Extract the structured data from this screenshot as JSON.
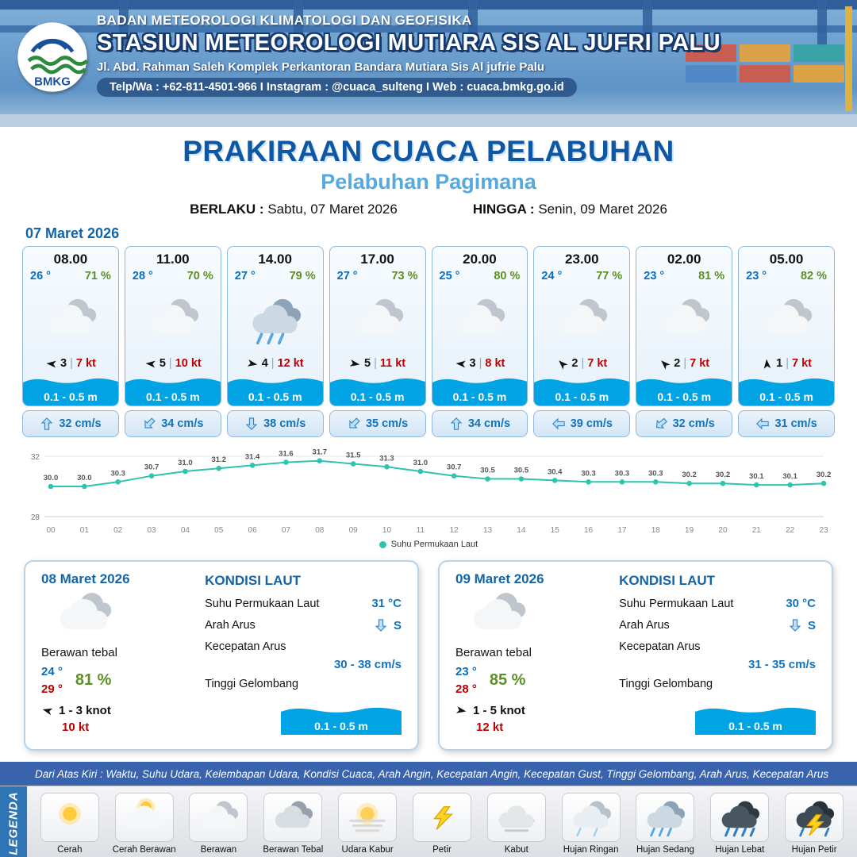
{
  "colors": {
    "wave_blue": "#00a3e4",
    "temp_blue": "#0a6ebd",
    "humidity_green": "#5d8f27",
    "wind_red": "#c00000",
    "title_blue": "#0e57a5",
    "subtitle_blue": "#56a9dd",
    "chart_teal": "#2ec4b0",
    "legend_bar_blue": "#3a63ad"
  },
  "header": {
    "agency": "BADAN METEOROLOGI KLIMATOLOGI DAN GEOFISIKA",
    "station": "STASIUN METEOROLOGI MUTIARA SIS AL JUFRI PALU",
    "address": "Jl. Abd. Rahman Saleh Komplek Perkantoran Bandara Mutiara Sis Al jufrie Palu",
    "contact": "Telp/Wa : +62-811-4501-966  I  Instagram : @cuaca_sulteng  I  Web : cuaca.bmkg.go.id",
    "logo_text": "BMKG"
  },
  "title": {
    "main": "PRAKIRAAN CUACA PELABUHAN",
    "subtitle": "Pelabuhan Pagimana",
    "berlaku_label": "BERLAKU :",
    "berlaku_value": "Sabtu, 07 Maret 2026",
    "hingga_label": "HINGGA :",
    "hingga_value": "Senin, 09 Maret 2026"
  },
  "forecast_date": "07 Maret 2026",
  "forecast_cards": [
    {
      "time": "08.00",
      "temp": "26 °",
      "humidity": "71 %",
      "icon": "berawan",
      "wind_value": "3",
      "wind_speed": "7 kt",
      "wind_rot": 185,
      "wave": "0.1 - 0.5 m",
      "current_speed": "32 cm/s",
      "current_rot": 0
    },
    {
      "time": "11.00",
      "temp": "28 °",
      "humidity": "70 %",
      "icon": "berawan",
      "wind_value": "5",
      "wind_speed": "10 kt",
      "wind_rot": 185,
      "wave": "0.1 - 0.5 m",
      "current_speed": "34 cm/s",
      "current_rot": 225
    },
    {
      "time": "14.00",
      "temp": "27 °",
      "humidity": "79 %",
      "icon": "hujan-sedang",
      "wind_value": "4",
      "wind_speed": "12 kt",
      "wind_rot": 10,
      "wave": "0.1 - 0.5 m",
      "current_speed": "38 cm/s",
      "current_rot": 180
    },
    {
      "time": "17.00",
      "temp": "27 °",
      "humidity": "73 %",
      "icon": "berawan",
      "wind_value": "5",
      "wind_speed": "11 kt",
      "wind_rot": 10,
      "wave": "0.1 - 0.5 m",
      "current_speed": "35 cm/s",
      "current_rot": 225
    },
    {
      "time": "20.00",
      "temp": "25 °",
      "humidity": "80 %",
      "icon": "berawan",
      "wind_value": "3",
      "wind_speed": "8 kt",
      "wind_rot": 185,
      "wave": "0.1 - 0.5 m",
      "current_speed": "34 cm/s",
      "current_rot": 0
    },
    {
      "time": "23.00",
      "temp": "24 °",
      "humidity": "77 %",
      "icon": "berawan",
      "wind_value": "2",
      "wind_speed": "7 kt",
      "wind_rot": 225,
      "wave": "0.1 - 0.5 m",
      "current_speed": "39 cm/s",
      "current_rot": 270
    },
    {
      "time": "02.00",
      "temp": "23 °",
      "humidity": "81 %",
      "icon": "berawan",
      "wind_value": "2",
      "wind_speed": "7 kt",
      "wind_rot": 225,
      "wave": "0.1 - 0.5 m",
      "current_speed": "32 cm/s",
      "current_rot": 230
    },
    {
      "time": "05.00",
      "temp": "23 °",
      "humidity": "82 %",
      "icon": "berawan",
      "wind_value": "1",
      "wind_speed": "7 kt",
      "wind_rot": 265,
      "wave": "0.1 - 0.5 m",
      "current_speed": "31 cm/s",
      "current_rot": 270
    }
  ],
  "chart_data": {
    "type": "line",
    "series_label": "Suhu Permukaan Laut",
    "x": [
      "00",
      "01",
      "02",
      "03",
      "04",
      "05",
      "06",
      "07",
      "08",
      "09",
      "10",
      "11",
      "12",
      "13",
      "14",
      "15",
      "16",
      "17",
      "18",
      "19",
      "20",
      "21",
      "22",
      "23"
    ],
    "values": [
      30.0,
      30.0,
      30.3,
      30.7,
      31.0,
      31.2,
      31.4,
      31.6,
      31.7,
      31.5,
      31.3,
      31.0,
      30.7,
      30.5,
      30.5,
      30.4,
      30.3,
      30.3,
      30.3,
      30.2,
      30.2,
      30.1,
      30.1,
      30.2
    ],
    "ylim": [
      28,
      32
    ],
    "line_color": "#2ec4b0",
    "grid": true,
    "legend_position": "bottom"
  },
  "daily_cards": [
    {
      "date": "08 Maret 2026",
      "icon": "berawan",
      "condition": "Berawan tebal",
      "temp_min": "24 °",
      "temp_max": "29 °",
      "humidity": "81 %",
      "wind_range": "1 - 3 knot",
      "wind_rot": 195,
      "gust": "10 kt",
      "sea": {
        "title": "KONDISI LAUT",
        "sst_label": "Suhu Permukaan Laut",
        "sst_value": "31 °C",
        "dir_label": "Arah Arus",
        "dir_value": "S",
        "dir_rot": 180,
        "speed_label": "Kecepatan Arus",
        "speed_value": "30 - 38 cm/s",
        "wave_label": "Tinggi Gelombang",
        "wave_value": "0.1 - 0.5 m"
      }
    },
    {
      "date": "09 Maret 2026",
      "icon": "berawan",
      "condition": "Berawan tebal",
      "temp_min": "23 °",
      "temp_max": "28 °",
      "humidity": "85 %",
      "wind_range": "1 - 5 knot",
      "wind_rot": 10,
      "gust": "12 kt",
      "sea": {
        "title": "KONDISI LAUT",
        "sst_label": "Suhu Permukaan Laut",
        "sst_value": "30 °C",
        "dir_label": "Arah Arus",
        "dir_value": "S",
        "dir_rot": 180,
        "speed_label": "Kecepatan Arus",
        "speed_value": "31 - 35 cm/s",
        "wave_label": "Tinggi Gelombang",
        "wave_value": "0.1 - 0.5 m"
      }
    }
  ],
  "legend": {
    "title": "LEGENDA",
    "header_note": "Dari Atas Kiri : Waktu, Suhu Udara, Kelembapan Udara, Kondisi Cuaca, Arah Angin, Kecepatan Angin, Kecepatan Gust, Tinggi Gelombang, Arah Arus, Kecepatan Arus",
    "items": [
      {
        "label": "Cerah",
        "icon": "cerah"
      },
      {
        "label": "Cerah Berawan",
        "icon": "cerah-berawan"
      },
      {
        "label": "Berawan",
        "icon": "berawan"
      },
      {
        "label": "Berawan Tebal",
        "icon": "berawan-tebal"
      },
      {
        "label": "Udara Kabur",
        "icon": "udara-kabur"
      },
      {
        "label": "Petir",
        "icon": "petir"
      },
      {
        "label": "Kabut",
        "icon": "kabut"
      },
      {
        "label": "Hujan Ringan",
        "icon": "hujan-ringan"
      },
      {
        "label": "Hujan Sedang",
        "icon": "hujan-sedang"
      },
      {
        "label": "Hujan Lebat",
        "icon": "hujan-lebat"
      },
      {
        "label": "Hujan Petir",
        "icon": "hujan-petir"
      }
    ]
  }
}
